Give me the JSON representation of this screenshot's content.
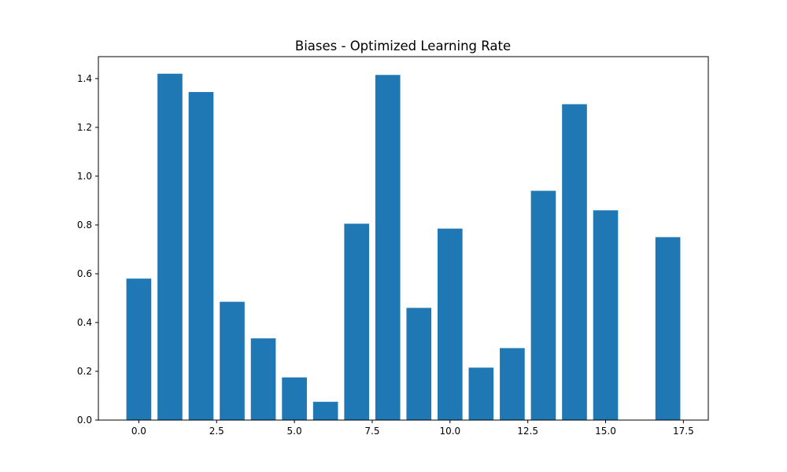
{
  "chart_data": {
    "type": "bar",
    "title": "Biases - Optimized Learning Rate",
    "xlabel": "",
    "ylabel": "",
    "x": [
      0,
      1,
      2,
      3,
      4,
      5,
      6,
      7,
      8,
      9,
      10,
      11,
      12,
      13,
      14,
      15,
      16,
      17
    ],
    "values": [
      0.58,
      1.42,
      1.345,
      0.485,
      0.335,
      0.175,
      0.075,
      0.805,
      1.415,
      0.46,
      0.785,
      0.215,
      0.295,
      0.94,
      1.295,
      0.86,
      0.0,
      0.75
    ],
    "xlim": [
      -1.3,
      18.3
    ],
    "ylim": [
      0,
      1.49
    ],
    "xticks": [
      0.0,
      2.5,
      5.0,
      7.5,
      10.0,
      12.5,
      15.0,
      17.5
    ],
    "xtick_labels": [
      "0.0",
      "2.5",
      "5.0",
      "7.5",
      "10.0",
      "12.5",
      "15.0",
      "17.5"
    ],
    "yticks": [
      0.0,
      0.2,
      0.4,
      0.6,
      0.8,
      1.0,
      1.2,
      1.4
    ],
    "ytick_labels": [
      "0.0",
      "0.2",
      "0.4",
      "0.6",
      "0.8",
      "1.0",
      "1.2",
      "1.4"
    ],
    "bar_color": "#1f77b4",
    "grid": false,
    "legend": "none"
  }
}
